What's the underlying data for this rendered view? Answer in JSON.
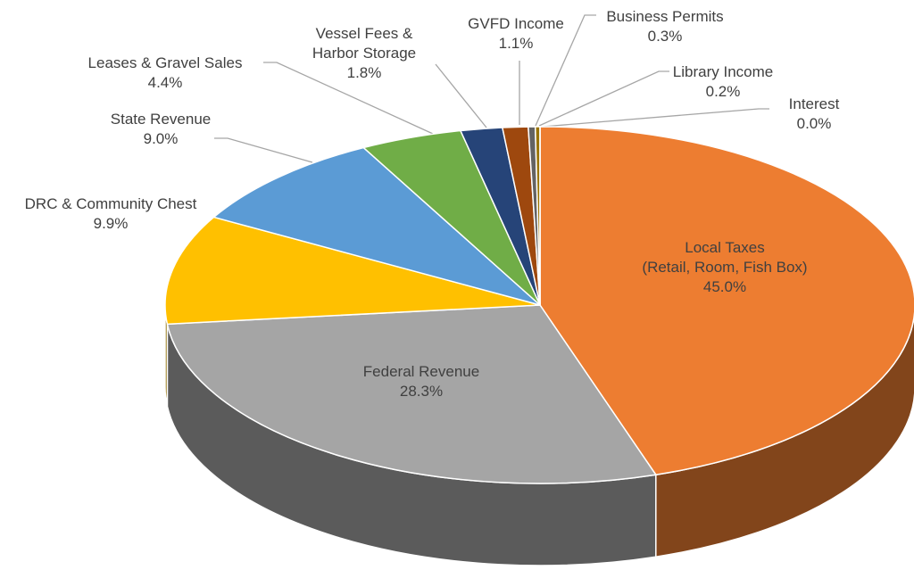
{
  "chart_data": {
    "type": "pie",
    "categories": [
      "Local Taxes\n(Retail, Room, Fish Box)",
      "Federal Revenue",
      "DRC & Community Chest",
      "State Revenue",
      "Leases & Gravel Sales",
      "Vessel Fees &\nHarbor Storage",
      "GVFD Income",
      "Business Permits",
      "Library Income",
      "Interest"
    ],
    "values": [
      45.0,
      28.3,
      9.9,
      9.0,
      4.4,
      1.8,
      1.1,
      0.3,
      0.2,
      0.0
    ],
    "value_labels": [
      "45.0%",
      "28.3%",
      "9.9%",
      "9.0%",
      "4.4%",
      "1.8%",
      "1.1%",
      "0.3%",
      "0.2%",
      "0.0%"
    ],
    "colors": [
      "#ed7d31",
      "#a5a5a5",
      "#ffc000",
      "#5b9bd5",
      "#70ad47",
      "#264478",
      "#9e480e",
      "#636363",
      "#997300",
      "#255e91"
    ]
  }
}
